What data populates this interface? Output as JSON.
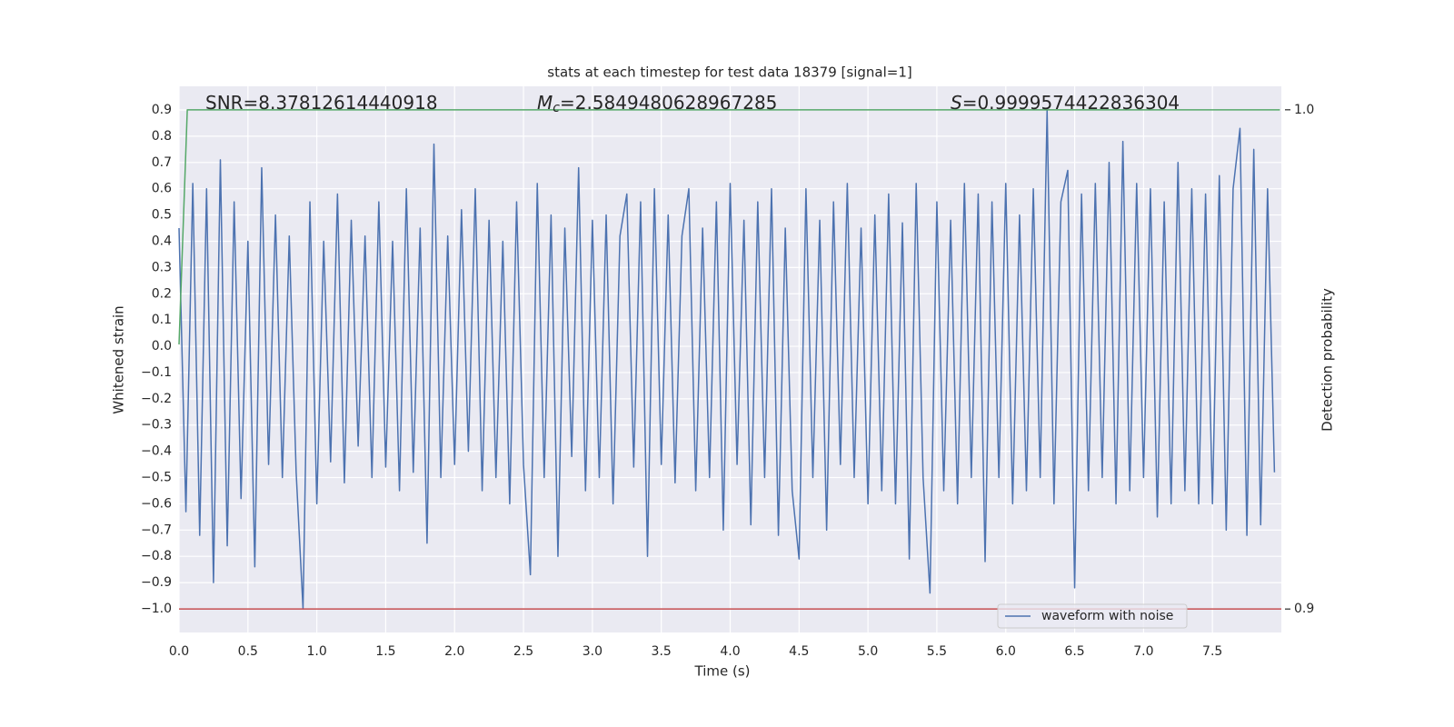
{
  "chart_data": {
    "type": "line",
    "title": "stats at each timestep for test data 18379 [signal=1]",
    "xlabel": "Time (s)",
    "ylabel": "Whitened strain",
    "y2label": "Detection probability",
    "annotations": [
      [
        "SNR=8.37812614440918"
      ],
      [
        "M",
        "c",
        "=2.5849480628967285"
      ],
      [
        "S",
        "=0.9999574422836304"
      ]
    ],
    "xlim": [
      0,
      8.0
    ],
    "ylim": [
      -1.09,
      0.99
    ],
    "y2lim": [
      0.8953,
      1.0047
    ],
    "xticks": [
      {
        "value": 0,
        "label": "0.0"
      },
      0.5,
      {
        "value": 1,
        "label": "1.0"
      },
      1.5,
      {
        "value": 2,
        "label": "2.0"
      },
      2.5,
      {
        "value": 3,
        "label": "3.0"
      },
      3.5,
      {
        "value": 4,
        "label": "4.0"
      },
      4.5,
      {
        "value": 5,
        "label": "5.0"
      },
      5.5,
      {
        "value": 6,
        "label": "6.0"
      },
      6.5,
      {
        "value": 7,
        "label": "7.0"
      },
      7.5
    ],
    "yticks": [
      0.9,
      0.8,
      0.7,
      0.6,
      0.5,
      0.4,
      0.3,
      0.2,
      0.1,
      {
        "value": 0,
        "label": "0.0"
      },
      {
        "value": -0.1,
        "label": "−0.1"
      },
      {
        "value": -0.2,
        "label": "−0.2"
      },
      {
        "value": -0.3,
        "label": "−0.3"
      },
      {
        "value": -0.4,
        "label": "−0.4"
      },
      {
        "value": -0.5,
        "label": "−0.5"
      },
      {
        "value": -0.6,
        "label": "−0.6"
      },
      {
        "value": -0.7,
        "label": "−0.7"
      },
      {
        "value": -0.8,
        "label": "−0.8"
      },
      {
        "value": -0.9,
        "label": "−0.9"
      },
      {
        "value": -1.0,
        "label": "−1.0"
      }
    ],
    "y2ticks": [
      {
        "value": 1.0,
        "label": "1.0"
      },
      0.9
    ],
    "grid": true,
    "legend": "lower right",
    "series": [
      {
        "name": "waveform with noise",
        "color": "#4c72b0",
        "x": [
          0,
          0.05,
          0.1,
          0.15,
          0.2,
          0.25,
          0.3,
          0.35,
          0.4,
          0.45,
          0.5,
          0.55,
          0.6,
          0.65,
          0.7,
          0.75,
          0.8,
          0.85,
          0.9,
          0.95,
          1,
          1.05,
          1.1,
          1.15,
          1.2,
          1.25,
          1.3,
          1.35,
          1.4,
          1.45,
          1.5,
          1.55,
          1.6,
          1.65,
          1.7,
          1.75,
          1.8,
          1.85,
          1.9,
          1.95,
          2,
          2.05,
          2.1,
          2.15,
          2.2,
          2.25,
          2.3,
          2.35,
          2.4,
          2.45,
          2.5,
          2.55,
          2.6,
          2.65,
          2.7,
          2.75,
          2.8,
          2.85,
          2.9,
          2.95,
          3,
          3.05,
          3.1,
          3.15,
          3.2,
          3.25,
          3.3,
          3.35,
          3.4,
          3.45,
          3.5,
          3.55,
          3.6,
          3.65,
          3.7,
          3.75,
          3.8,
          3.85,
          3.9,
          3.95,
          4,
          4.05,
          4.1,
          4.15,
          4.2,
          4.25,
          4.3,
          4.35,
          4.4,
          4.45,
          4.5,
          4.55,
          4.6,
          4.65,
          4.7,
          4.75,
          4.8,
          4.85,
          4.9,
          4.95,
          5,
          5.05,
          5.1,
          5.15,
          5.2,
          5.25,
          5.3,
          5.35,
          5.4,
          5.45,
          5.5,
          5.55,
          5.6,
          5.65,
          5.7,
          5.75,
          5.8,
          5.85,
          5.9,
          5.95,
          6,
          6.05,
          6.1,
          6.15,
          6.2,
          6.25,
          6.3,
          6.35,
          6.4,
          6.45,
          6.5,
          6.55,
          6.6,
          6.65,
          6.7,
          6.75,
          6.8,
          6.85,
          6.9,
          6.95,
          7,
          7.05,
          7.1,
          7.15,
          7.2,
          7.25,
          7.3,
          7.35,
          7.4,
          7.45,
          7.5,
          7.55,
          7.6,
          7.65,
          7.7,
          7.75,
          7.8,
          7.85,
          7.9,
          7.95
        ],
        "values": [
          0.45,
          -0.63,
          0.62,
          -0.72,
          0.6,
          -0.9,
          0.71,
          -0.76,
          0.55,
          -0.58,
          0.4,
          -0.84,
          0.68,
          -0.45,
          0.5,
          -0.5,
          0.42,
          -0.48,
          -1.0,
          0.55,
          -0.6,
          0.4,
          -0.44,
          0.58,
          -0.52,
          0.48,
          -0.38,
          0.42,
          -0.5,
          0.55,
          -0.46,
          0.4,
          -0.55,
          0.6,
          -0.48,
          0.45,
          -0.75,
          0.77,
          -0.5,
          0.42,
          -0.45,
          0.52,
          -0.4,
          0.6,
          -0.55,
          0.48,
          -0.5,
          0.4,
          -0.6,
          0.55,
          -0.45,
          -0.87,
          0.62,
          -0.5,
          0.5,
          -0.8,
          0.45,
          -0.42,
          0.68,
          -0.55,
          0.48,
          -0.5,
          0.5,
          -0.6,
          0.42,
          0.58,
          -0.46,
          0.55,
          -0.8,
          0.6,
          -0.45,
          0.5,
          -0.52,
          0.42,
          0.6,
          -0.55,
          0.45,
          -0.5,
          0.55,
          -0.7,
          0.62,
          -0.45,
          0.48,
          -0.68,
          0.55,
          -0.5,
          0.6,
          -0.72,
          0.45,
          -0.55,
          -0.81,
          0.6,
          -0.5,
          0.48,
          -0.7,
          0.55,
          -0.45,
          0.62,
          -0.5,
          0.45,
          -0.6,
          0.5,
          -0.55,
          0.58,
          -0.6,
          0.47,
          -0.81,
          0.62,
          -0.5,
          -0.94,
          0.55,
          -0.55,
          0.48,
          -0.6,
          0.62,
          -0.5,
          0.58,
          -0.82,
          0.55,
          -0.5,
          0.62,
          -0.6,
          0.5,
          -0.55,
          0.6,
          -0.5,
          0.9,
          -0.6,
          0.55,
          0.67,
          -0.92,
          0.58,
          -0.55,
          0.62,
          -0.5,
          0.7,
          -0.6,
          0.78,
          -0.55,
          0.62,
          -0.5,
          0.6,
          -0.65,
          0.55,
          -0.6,
          0.7,
          -0.55,
          0.6,
          -0.6,
          0.58,
          -0.6,
          0.65,
          -0.7,
          0.6,
          0.83,
          -0.72,
          0.75,
          -0.68,
          0.6,
          -0.48
        ]
      },
      {
        "color": "#55a868",
        "axis": "y2",
        "x": [
          0,
          0.06,
          7.99
        ],
        "values": [
          0.953,
          1.0,
          1.0
        ]
      },
      {
        "color": "#c44e52",
        "axis": "y2",
        "x": [
          0,
          8.0
        ],
        "values": [
          0.9,
          0.9
        ]
      }
    ]
  }
}
